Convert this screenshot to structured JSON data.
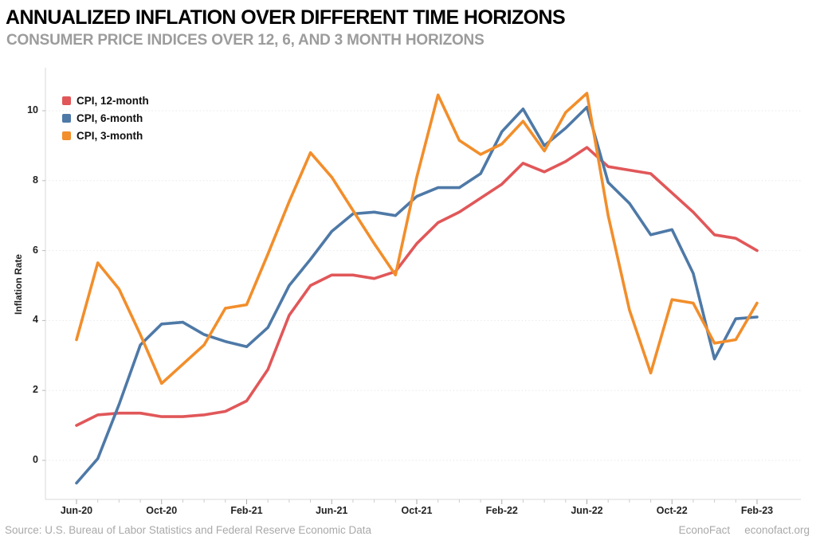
{
  "header": {
    "title": "ANNUALIZED INFLATION OVER DIFFERENT TIME HORIZONS",
    "subtitle": "CONSUMER PRICE INDICES OVER 12, 6, AND 3 MONTH HORIZONS"
  },
  "footer": {
    "source": "Source: U.S. Bureau of Labor Statistics and Federal Reserve Economic Data",
    "brand": "EconoFact",
    "site": "econofact.org"
  },
  "chart_data": {
    "type": "line",
    "title": "Annualized inflation over different time horizons",
    "ylabel": "Inflation Rate",
    "xlabel": "",
    "grid": true,
    "legend_position": "top-left",
    "ylim": [
      -1.2,
      11.2
    ],
    "yticks": [
      0,
      2,
      4,
      6,
      8,
      10
    ],
    "x_tick_every": 4,
    "x_tick_labels": [
      "Jun-20",
      "Oct-20",
      "Feb-21",
      "Jun-21",
      "Oct-21",
      "Feb-22",
      "Jun-22",
      "Oct-22",
      "Feb-23"
    ],
    "categories": [
      "Jun-20",
      "Jul-20",
      "Aug-20",
      "Sep-20",
      "Oct-20",
      "Nov-20",
      "Dec-20",
      "Jan-21",
      "Feb-21",
      "Mar-21",
      "Apr-21",
      "May-21",
      "Jun-21",
      "Jul-21",
      "Aug-21",
      "Sep-21",
      "Oct-21",
      "Nov-21",
      "Dec-21",
      "Jan-22",
      "Feb-22",
      "Mar-22",
      "Apr-22",
      "May-22",
      "Jun-22",
      "Jul-22",
      "Aug-22",
      "Sep-22",
      "Oct-22",
      "Nov-22",
      "Dec-22",
      "Jan-23",
      "Feb-23"
    ],
    "series": [
      {
        "name": "CPI, 12-month",
        "color": "#e15759",
        "values": [
          1.0,
          1.3,
          1.35,
          1.35,
          1.25,
          1.25,
          1.3,
          1.4,
          1.7,
          2.6,
          4.15,
          5.0,
          5.3,
          5.3,
          5.2,
          5.4,
          6.2,
          6.8,
          7.1,
          7.5,
          7.9,
          8.5,
          8.25,
          8.55,
          8.95,
          8.4,
          8.3,
          8.2,
          7.65,
          7.1,
          6.45,
          6.35,
          6.0
        ]
      },
      {
        "name": "CPI, 6-month",
        "color": "#4e79a7",
        "values": [
          -0.65,
          0.05,
          1.6,
          3.3,
          3.9,
          3.95,
          3.6,
          3.4,
          3.25,
          3.8,
          5.0,
          5.75,
          6.55,
          7.05,
          7.1,
          7.0,
          7.55,
          7.8,
          7.8,
          8.2,
          9.4,
          10.05,
          9.0,
          9.5,
          10.1,
          7.95,
          7.35,
          6.45,
          6.6,
          5.35,
          2.9,
          4.05,
          4.1
        ]
      },
      {
        "name": "CPI, 3-month",
        "color": "#f28e2b",
        "values": [
          3.45,
          5.65,
          4.9,
          3.6,
          2.2,
          2.75,
          3.3,
          4.35,
          4.45,
          5.9,
          7.4,
          8.8,
          8.1,
          7.15,
          6.2,
          5.3,
          8.1,
          10.45,
          9.15,
          8.75,
          9.05,
          9.7,
          8.85,
          9.95,
          10.5,
          7.0,
          4.3,
          2.5,
          4.6,
          4.5,
          3.35,
          3.45,
          4.5
        ]
      }
    ]
  }
}
